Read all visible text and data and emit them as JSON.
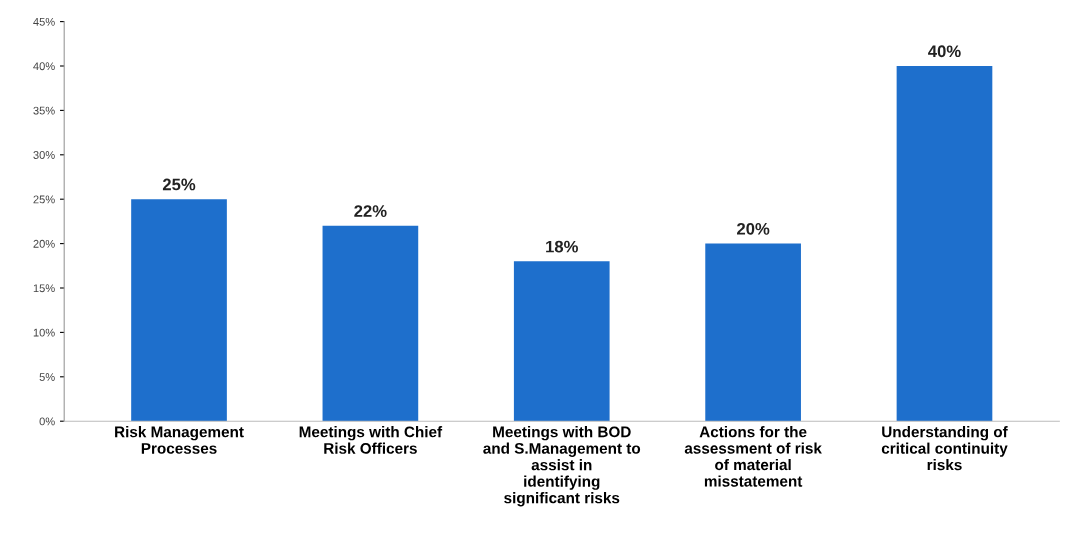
{
  "chart_data": {
    "type": "bar",
    "categories": [
      "Risk Management Processes",
      "Meetings with Chief Risk Officers",
      "Meetings with BOD and S.Management to assist in identifying significant risks",
      "Actions for the assessment of risk of material misstatement",
      "Understanding of critical continuity risks"
    ],
    "values": [
      25,
      22,
      18,
      20,
      40
    ],
    "color": "#1e6fcc",
    "ylim": [
      0,
      45
    ],
    "yticks": [
      {
        "value": 0,
        "label": "0%"
      },
      {
        "value": 5,
        "label": "5%"
      },
      {
        "value": 10,
        "label": "10%"
      },
      {
        "value": 15,
        "label": "15%"
      },
      {
        "value": 20,
        "label": "20%"
      },
      {
        "value": 25,
        "label": "25%"
      },
      {
        "value": 30,
        "label": "30%"
      },
      {
        "value": 35,
        "label": "35%"
      },
      {
        "value": 40,
        "label": "40%"
      },
      {
        "value": 45,
        "label": "45%"
      }
    ],
    "value_labels": [
      "25%",
      "22%",
      "18%",
      "20%",
      "40%"
    ],
    "grid": false
  }
}
